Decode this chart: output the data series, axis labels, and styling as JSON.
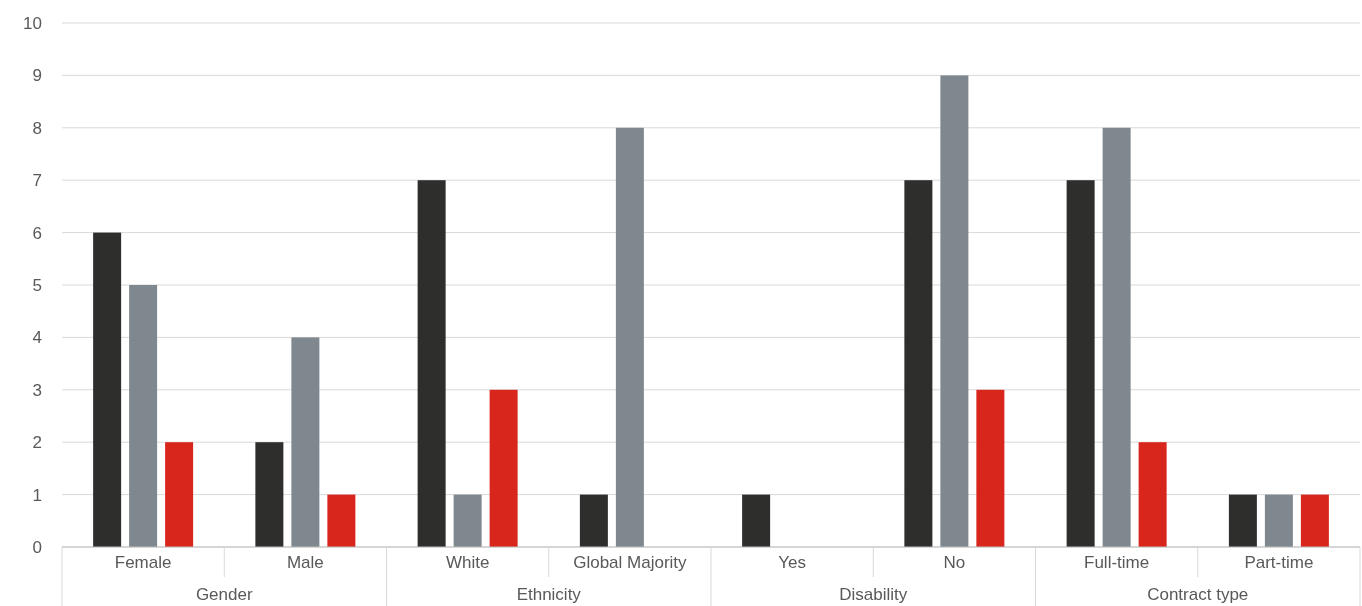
{
  "chart_data": {
    "type": "bar",
    "categories": [
      "Female",
      "Male",
      "White",
      "Global Majority",
      "Yes",
      "No",
      "Full-time",
      "Part-time"
    ],
    "series": [
      {
        "color": "#2e2e2c",
        "values": [
          6,
          2,
          7,
          1,
          1,
          7,
          7,
          1
        ]
      },
      {
        "color": "#7f888e",
        "values": [
          5,
          4,
          1,
          8,
          0,
          9,
          8,
          1
        ]
      },
      {
        "color": "#d9261c",
        "values": [
          2,
          1,
          3,
          0,
          0,
          3,
          2,
          1
        ]
      }
    ],
    "ylim": [
      0,
      10
    ],
    "yticks": [
      0,
      1,
      2,
      3,
      4,
      5,
      6,
      7,
      8,
      9,
      10
    ],
    "grid": "y",
    "annotations": [
      "Gender",
      "Ethnicity",
      "Disability",
      "Contract type"
    ]
  }
}
